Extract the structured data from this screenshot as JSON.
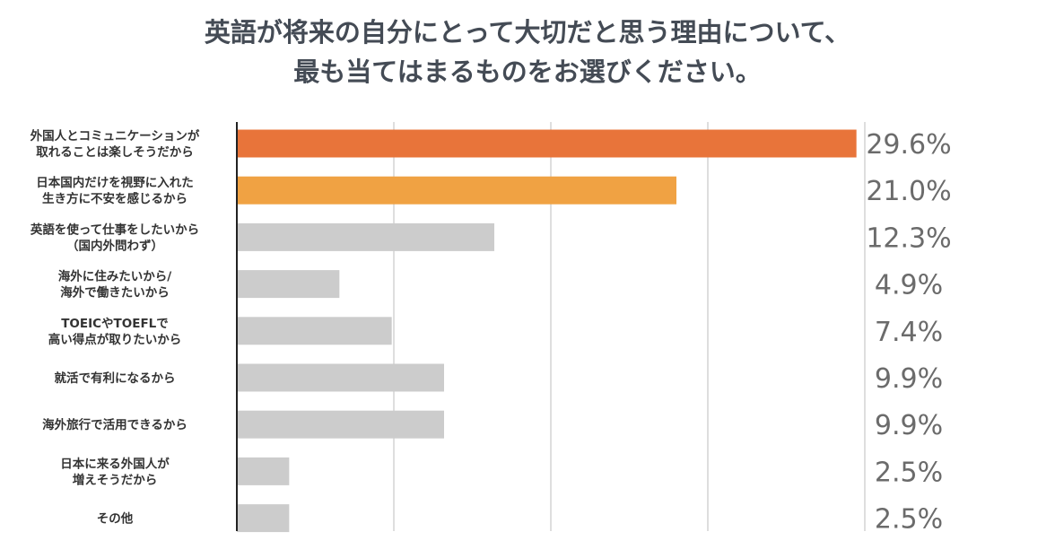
{
  "title_lines": [
    "英語が将来の自分にとって大切だと思う理由について、",
    "最も当てはまるものをお選びください。"
  ],
  "colors": {
    "highlight_1": "#e8743a",
    "highlight_2": "#f0a243",
    "default_bar": "#cccccc",
    "grid": "#bdbdbd",
    "axis": "#222222",
    "value_text": "#6b6b6b"
  },
  "chart_data": {
    "type": "bar",
    "orientation": "horizontal",
    "categories": [
      [
        "外国人とコミュニケーションが",
        "取れることは楽しそうだから"
      ],
      [
        "日本国内だけを視野に入れた",
        "生き方に不安を感じるから"
      ],
      [
        "英語を使って仕事をしたいから",
        "（国内外問わず）"
      ],
      [
        "海外に住みたいから/",
        "海外で働きたいから"
      ],
      [
        "TOEICやTOEFLで",
        "高い得点が取りたいから"
      ],
      [
        "就活で有利になるから"
      ],
      [
        "海外旅行で活用できるから"
      ],
      [
        "日本に来る外国人が",
        "増えそうだから"
      ],
      [
        "その他"
      ]
    ],
    "values": [
      29.6,
      21.0,
      12.3,
      4.9,
      7.4,
      9.9,
      9.9,
      2.5,
      2.5
    ],
    "value_labels": [
      "29.6%",
      "21.0%",
      "12.3%",
      "4.9%",
      "7.4%",
      "9.9%",
      "9.9%",
      "2.5%",
      "2.5%"
    ],
    "bar_colors": [
      "#e8743a",
      "#f0a243",
      "#cccccc",
      "#cccccc",
      "#cccccc",
      "#cccccc",
      "#cccccc",
      "#cccccc",
      "#cccccc"
    ],
    "xlim": [
      0,
      30
    ],
    "grid_step": 7.5,
    "grid": true,
    "xlabel": "",
    "ylabel": ""
  }
}
